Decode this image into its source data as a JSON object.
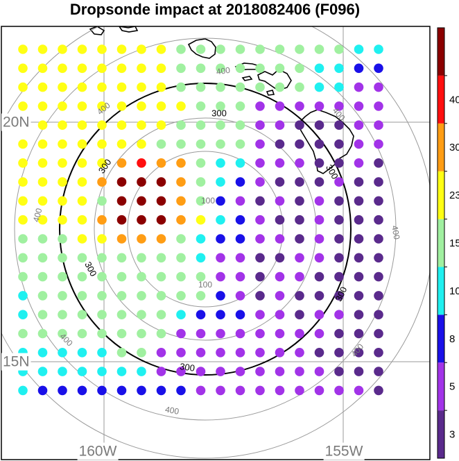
{
  "title": "Dropsonde impact at 2018082406 (F096)",
  "latitude_labels": [
    "20N",
    "15N"
  ],
  "longitude_labels": [
    "160W",
    "155W"
  ],
  "colorbar": {
    "tick_labels": [
      "3",
      "5",
      "8",
      "10",
      "15",
      "23",
      "30",
      "40"
    ],
    "colors": [
      "#5a2a8c",
      "#a233e8",
      "#1a10e8",
      "#1ff0f0",
      "#a0f0a0",
      "#ffff14",
      "#ff9d14",
      "#ff0f0f",
      "#8b0000"
    ]
  },
  "range_rings": {
    "labels_100": [
      "100",
      "100"
    ],
    "labels_200": [],
    "labels_300": [
      "300",
      "300",
      "300",
      "300",
      "300"
    ],
    "labels_400": [
      "400",
      "400",
      "400",
      "400",
      "400",
      "400"
    ]
  },
  "grid_levels": [
    "5555555544444444433",
    "5555555544444443322",
    "5555555544444443311",
    "5555555554441111111",
    "5555555544441100011",
    "5555555444441000011",
    "5555567664331110010",
    "5555688864321000100",
    "5555488864210101000",
    "5555688865321001000",
    "4445566643221101000",
    "4444444443110011000",
    "4444444444110110000",
    "3444444444210100000",
    "3444444432221101100",
    "4444444411111111000",
    "3333344111111110000",
    "3333333111111111000",
    "3222222221111111110"
  ]
}
